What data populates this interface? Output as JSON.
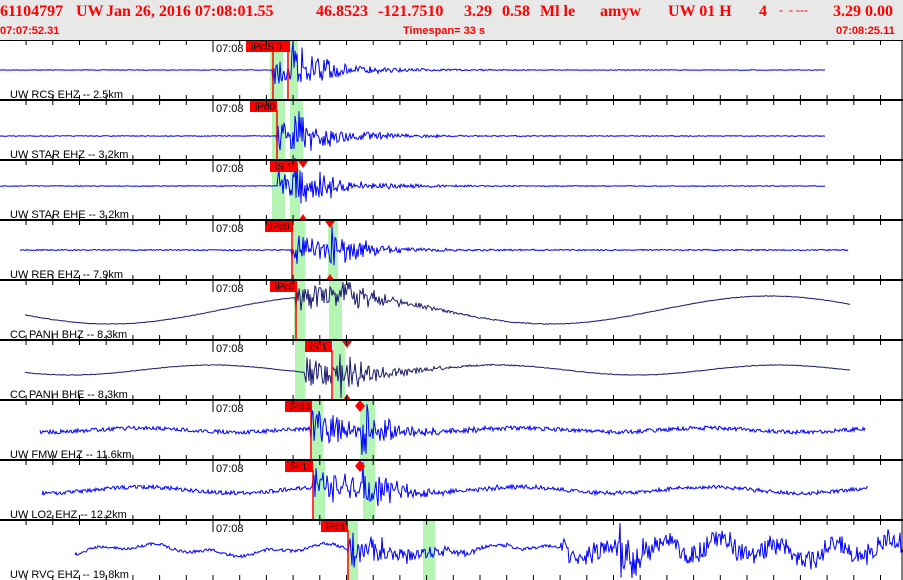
{
  "header": {
    "event_id": "61104797",
    "network": "UW",
    "datetime": "Jan 26, 2016 07:08:01.55",
    "lat": "46.8523",
    "lon": "-121.7510",
    "magnitude": "3.29",
    "mag_err": "0.58",
    "mag_type": "Ml le",
    "analyst": "amyw",
    "source": "UW 01 H",
    "count": "4",
    "flags": "-  - ---",
    "values": "3.29 0.00",
    "start_time": "07:07:52.31",
    "timespan": "Timespan=  33 s",
    "end_time": "07:08:25.11"
  },
  "colors": {
    "header_text": "#ff0000",
    "trace_blue": "#0000ff",
    "trace_navy": "#1a1a6e",
    "pick": "#ff0000",
    "window": "#b4f5b4"
  },
  "time_tick_label": "07:08",
  "channels": [
    {
      "label": "UW RCS EHZ -- 2.5km",
      "pick": "iPciS 0",
      "color": "blue"
    },
    {
      "label": "UW STAR EHZ -- 3.2km",
      "pick": "iPd0",
      "color": "blue"
    },
    {
      "label": "UW STAR EHE -- 3.2km",
      "pick": "iS 1",
      "color": "blue"
    },
    {
      "label": "UW RER EHZ -- 7.9km",
      "pick": "iPc0",
      "color": "blue"
    },
    {
      "label": "CC PANH BHZ -- 8.3km",
      "pick": "iPc0",
      "color": "navy"
    },
    {
      "label": "CC PANH BHE -- 8.3km",
      "pick": "iS 1",
      "color": "navy"
    },
    {
      "label": "UW FMW EHZ -- 11.6km",
      "pick": "iPd0",
      "color": "blue"
    },
    {
      "label": "UW LO2 EHZ -- 12.2km",
      "pick": "iP 1",
      "color": "blue"
    },
    {
      "label": "UW RVC EHZ -- 19.8km",
      "pick": "iPc1",
      "color": "blue"
    }
  ]
}
